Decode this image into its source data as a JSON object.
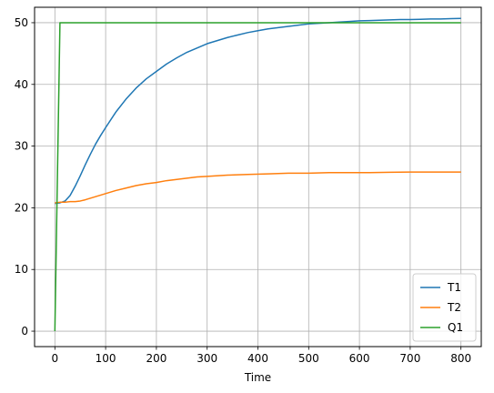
{
  "chart_data": {
    "type": "line",
    "title": "",
    "xlabel": "Time",
    "ylabel": "",
    "xlim": [
      -40,
      840
    ],
    "ylim": [
      -2.5,
      52.5
    ],
    "xticks": [
      0,
      100,
      200,
      300,
      400,
      500,
      600,
      700,
      800
    ],
    "yticks": [
      0,
      10,
      20,
      30,
      40,
      50
    ],
    "grid": true,
    "legend_position": "lower-right",
    "series": [
      {
        "name": "T1",
        "color": "#1f77b4",
        "x": [
          0,
          10,
          20,
          30,
          40,
          50,
          60,
          70,
          80,
          90,
          100,
          120,
          140,
          160,
          180,
          200,
          220,
          240,
          260,
          280,
          300,
          320,
          340,
          360,
          380,
          400,
          420,
          440,
          460,
          480,
          500,
          520,
          540,
          560,
          580,
          600,
          620,
          640,
          660,
          680,
          700,
          720,
          740,
          760,
          780,
          800
        ],
        "values": [
          20.7,
          20.8,
          21.1,
          22.0,
          23.5,
          25.2,
          27.0,
          28.7,
          30.3,
          31.7,
          33.0,
          35.5,
          37.6,
          39.4,
          40.9,
          42.1,
          43.3,
          44.3,
          45.2,
          45.9,
          46.6,
          47.1,
          47.6,
          48.0,
          48.4,
          48.7,
          49.0,
          49.2,
          49.4,
          49.6,
          49.8,
          49.9,
          50.0,
          50.1,
          50.2,
          50.3,
          50.35,
          50.4,
          50.45,
          50.5,
          50.5,
          50.55,
          50.6,
          50.6,
          50.65,
          50.7
        ]
      },
      {
        "name": "T2",
        "color": "#ff7f0e",
        "x": [
          0,
          10,
          20,
          30,
          40,
          50,
          60,
          80,
          100,
          120,
          140,
          160,
          180,
          200,
          220,
          240,
          260,
          280,
          300,
          340,
          380,
          420,
          460,
          500,
          540,
          580,
          620,
          660,
          700,
          740,
          780,
          800
        ],
        "values": [
          20.8,
          20.9,
          20.9,
          21.0,
          21.0,
          21.1,
          21.3,
          21.8,
          22.3,
          22.8,
          23.2,
          23.6,
          23.9,
          24.1,
          24.4,
          24.6,
          24.8,
          25.0,
          25.1,
          25.3,
          25.4,
          25.5,
          25.6,
          25.6,
          25.7,
          25.7,
          25.7,
          25.75,
          25.8,
          25.8,
          25.8,
          25.8
        ]
      },
      {
        "name": "Q1",
        "color": "#2ca02c",
        "x": [
          0,
          10,
          800
        ],
        "values": [
          0,
          50,
          50
        ]
      }
    ]
  }
}
